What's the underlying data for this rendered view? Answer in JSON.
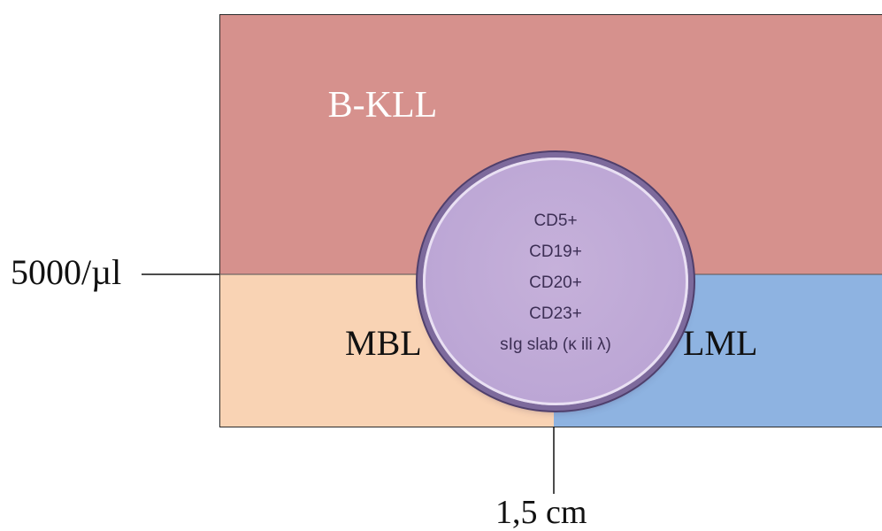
{
  "regions": {
    "top": {
      "label": "B-KLL",
      "color": "#d6918d"
    },
    "bottom_left": {
      "label": "MBL",
      "color": "#f9d3b4"
    },
    "bottom_right": {
      "label": "LML",
      "color": "#8eb3e1"
    }
  },
  "thresholds": {
    "y_threshold_label": "5000/µl",
    "x_threshold_label": "1,5 cm"
  },
  "immunophenotype": {
    "markers": [
      "CD5+",
      "CD19+",
      "CD20+",
      "CD23+",
      "sIg slab (κ ili λ)"
    ],
    "fill_color": "#bca6d5"
  }
}
